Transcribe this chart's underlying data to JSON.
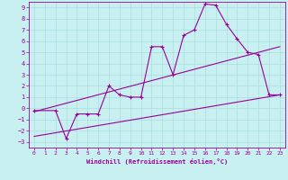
{
  "title": "",
  "xlabel": "Windchill (Refroidissement éolien,°C)",
  "ylabel": "",
  "bg_color": "#c8f0f0",
  "line_color": "#990099",
  "xlim": [
    -0.5,
    23.5
  ],
  "ylim": [
    -3.5,
    9.5
  ],
  "xticks": [
    0,
    1,
    2,
    3,
    4,
    5,
    6,
    7,
    8,
    9,
    10,
    11,
    12,
    13,
    14,
    15,
    16,
    17,
    18,
    19,
    20,
    21,
    22,
    23
  ],
  "yticks": [
    -3,
    -2,
    -1,
    0,
    1,
    2,
    3,
    4,
    5,
    6,
    7,
    8,
    9
  ],
  "main_x": [
    0,
    2,
    3,
    4,
    5,
    6,
    7,
    8,
    9,
    10,
    11,
    12,
    13,
    14,
    15,
    16,
    17,
    18,
    19,
    20,
    21,
    22,
    23
  ],
  "main_y": [
    -0.2,
    -0.2,
    -2.7,
    -0.5,
    -0.5,
    -0.5,
    2.0,
    1.2,
    1.0,
    1.0,
    5.5,
    5.5,
    3.0,
    6.5,
    7.0,
    9.3,
    9.2,
    7.5,
    6.2,
    5.0,
    4.8,
    1.2,
    1.2
  ],
  "line1_x": [
    0,
    23
  ],
  "line1_y": [
    -0.3,
    5.5
  ],
  "line2_x": [
    0,
    23
  ],
  "line2_y": [
    -2.5,
    1.2
  ],
  "grid_color": "#aadddd",
  "marker": "+"
}
